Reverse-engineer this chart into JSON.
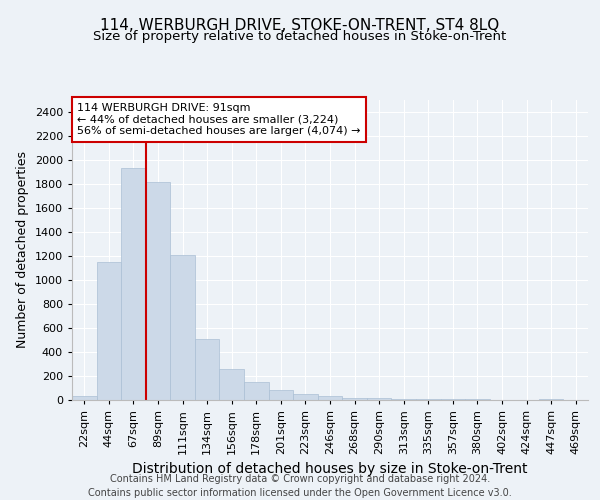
{
  "title": "114, WERBURGH DRIVE, STOKE-ON-TRENT, ST4 8LQ",
  "subtitle": "Size of property relative to detached houses in Stoke-on-Trent",
  "xlabel": "Distribution of detached houses by size in Stoke-on-Trent",
  "ylabel": "Number of detached properties",
  "categories": [
    "22sqm",
    "44sqm",
    "67sqm",
    "89sqm",
    "111sqm",
    "134sqm",
    "156sqm",
    "178sqm",
    "201sqm",
    "223sqm",
    "246sqm",
    "268sqm",
    "290sqm",
    "313sqm",
    "335sqm",
    "357sqm",
    "380sqm",
    "402sqm",
    "424sqm",
    "447sqm",
    "469sqm"
  ],
  "values": [
    30,
    1150,
    1930,
    1820,
    1210,
    510,
    260,
    150,
    80,
    50,
    30,
    20,
    15,
    10,
    8,
    5,
    5,
    3,
    2,
    10,
    0
  ],
  "bar_color": "#ccd9e8",
  "bar_edge_color": "#aabfd4",
  "vline_index": 3,
  "vline_color": "#cc0000",
  "annotation_text": "114 WERBURGH DRIVE: 91sqm\n← 44% of detached houses are smaller (3,224)\n56% of semi-detached houses are larger (4,074) →",
  "annotation_box_color": "#ffffff",
  "annotation_box_edge": "#cc0000",
  "footnote": "Contains HM Land Registry data © Crown copyright and database right 2024.\nContains public sector information licensed under the Open Government Licence v3.0.",
  "ylim": [
    0,
    2500
  ],
  "yticks": [
    0,
    200,
    400,
    600,
    800,
    1000,
    1200,
    1400,
    1600,
    1800,
    2000,
    2200,
    2400
  ],
  "title_fontsize": 11,
  "subtitle_fontsize": 9.5,
  "xlabel_fontsize": 10,
  "ylabel_fontsize": 9,
  "tick_fontsize": 8,
  "annot_fontsize": 8,
  "footnote_fontsize": 7,
  "bg_color": "#edf2f7",
  "grid_color": "#ffffff"
}
